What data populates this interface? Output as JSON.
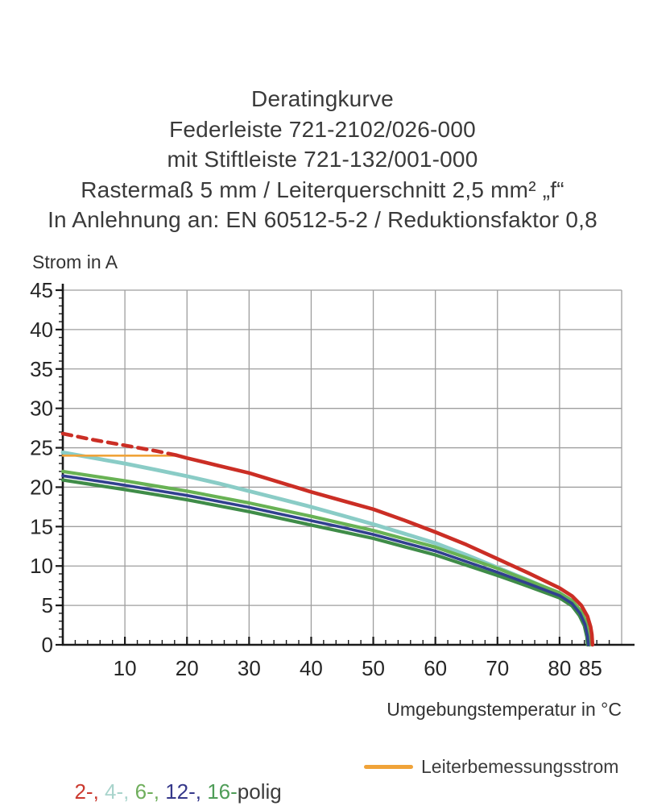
{
  "title": {
    "lines": [
      "Deratingkurve",
      "Federleiste 721-2102/026-000",
      "mit Stiftleiste 721-132/001-000",
      "Rastermaß 5 mm / Leiterquerschnitt 2,5 mm² „f“",
      "In Anlehnung an: EN 60512-5-2 / Reduktionsfaktor 0,8"
    ]
  },
  "chart_data": {
    "type": "line",
    "title": "Deratingkurve",
    "xlabel": "Umgebungstemperatur in °C",
    "ylabel": "Strom in A",
    "xlim": [
      0,
      90
    ],
    "ylim": [
      0,
      45
    ],
    "grid": true,
    "grid_color": "#9e9e9e",
    "axis_color": "#1a1a1a",
    "x_major_grid_step": 10,
    "y_major_grid_step": 5,
    "x_minor_tick_step": 2,
    "y_minor_tick_step": 1,
    "x_tick_labels": [
      10,
      20,
      30,
      40,
      50,
      60,
      70,
      80,
      85
    ],
    "y_tick_labels": [
      0,
      5,
      10,
      15,
      20,
      25,
      30,
      35,
      40,
      45
    ],
    "legend_position": "bottom",
    "series": [
      {
        "name": "4-polig",
        "color": "#8accc6",
        "width": 4.8,
        "dash": null,
        "points": [
          [
            0,
            24.4
          ],
          [
            5,
            23.7
          ],
          [
            10,
            23.0
          ],
          [
            15,
            22.2
          ],
          [
            20,
            21.4
          ],
          [
            25,
            20.5
          ],
          [
            30,
            19.5
          ],
          [
            35,
            18.5
          ],
          [
            40,
            17.5
          ],
          [
            45,
            16.4
          ],
          [
            50,
            15.3
          ],
          [
            55,
            14.1
          ],
          [
            60,
            12.9
          ],
          [
            65,
            11.4
          ],
          [
            70,
            9.8
          ],
          [
            75,
            8.2
          ],
          [
            80,
            6.5
          ],
          [
            82,
            5.4
          ],
          [
            83.5,
            4.0
          ],
          [
            84.3,
            2.6
          ],
          [
            84.7,
            1.2
          ],
          [
            84.85,
            0
          ]
        ]
      },
      {
        "name": "6-polig",
        "color": "#68b254",
        "width": 4.2,
        "dash": null,
        "points": [
          [
            0,
            22.0
          ],
          [
            5,
            21.4
          ],
          [
            10,
            20.8
          ],
          [
            15,
            20.15
          ],
          [
            20,
            19.5
          ],
          [
            25,
            18.75
          ],
          [
            30,
            18.0
          ],
          [
            35,
            17.15
          ],
          [
            40,
            16.3
          ],
          [
            45,
            15.4
          ],
          [
            50,
            14.5
          ],
          [
            55,
            13.45
          ],
          [
            60,
            12.4
          ],
          [
            65,
            11.05
          ],
          [
            70,
            9.7
          ],
          [
            75,
            8.15
          ],
          [
            80,
            6.6
          ],
          [
            82,
            5.6
          ],
          [
            83.5,
            4.2
          ],
          [
            84.3,
            2.8
          ],
          [
            84.65,
            1.2
          ],
          [
            84.8,
            0
          ]
        ]
      },
      {
        "name": "16-polig",
        "color": "#3f8c48",
        "width": 4.2,
        "dash": null,
        "points": [
          [
            0,
            20.9
          ],
          [
            5,
            20.3
          ],
          [
            10,
            19.7
          ],
          [
            15,
            19.05
          ],
          [
            20,
            18.4
          ],
          [
            25,
            17.65
          ],
          [
            30,
            16.9
          ],
          [
            35,
            16.05
          ],
          [
            40,
            15.2
          ],
          [
            45,
            14.35
          ],
          [
            50,
            13.5
          ],
          [
            55,
            12.45
          ],
          [
            60,
            11.4
          ],
          [
            65,
            10.1
          ],
          [
            70,
            8.8
          ],
          [
            75,
            7.4
          ],
          [
            80,
            5.95
          ],
          [
            82,
            4.95
          ],
          [
            83.2,
            3.7
          ],
          [
            84.0,
            2.4
          ],
          [
            84.4,
            1.0
          ],
          [
            84.5,
            0
          ]
        ]
      },
      {
        "name": "12-polig",
        "color": "#31408f",
        "width": 3.6,
        "dash": null,
        "points": [
          [
            0,
            21.45
          ],
          [
            5,
            20.85
          ],
          [
            10,
            20.25
          ],
          [
            15,
            19.6
          ],
          [
            20,
            18.95
          ],
          [
            25,
            18.2
          ],
          [
            30,
            17.45
          ],
          [
            35,
            16.6
          ],
          [
            40,
            15.75
          ],
          [
            45,
            14.9
          ],
          [
            50,
            14.0
          ],
          [
            55,
            12.95
          ],
          [
            60,
            11.9
          ],
          [
            65,
            10.55
          ],
          [
            70,
            9.2
          ],
          [
            75,
            7.75
          ],
          [
            80,
            6.25
          ],
          [
            82,
            5.25
          ],
          [
            83.3,
            4.0
          ],
          [
            84.1,
            2.6
          ],
          [
            84.5,
            1.1
          ],
          [
            84.65,
            0
          ]
        ]
      },
      {
        "name": "Leiterbemessungsstrom",
        "color": "#f0a339",
        "width": 2.6,
        "dash": null,
        "points": [
          [
            0,
            24.0
          ],
          [
            18.3,
            24.0
          ]
        ]
      },
      {
        "name": "2-polig-gestrichelt",
        "color": "#cb2e25",
        "width": 4.6,
        "dash": "11,8",
        "points": [
          [
            0,
            26.8
          ],
          [
            5,
            26.0
          ],
          [
            10,
            25.3
          ],
          [
            15,
            24.6
          ],
          [
            18.3,
            24.05
          ]
        ]
      },
      {
        "name": "2-polig",
        "color": "#cb2e25",
        "width": 4.6,
        "dash": null,
        "points": [
          [
            18.3,
            24.05
          ],
          [
            20,
            23.7
          ],
          [
            25,
            22.75
          ],
          [
            30,
            21.8
          ],
          [
            35,
            20.6
          ],
          [
            40,
            19.4
          ],
          [
            45,
            18.3
          ],
          [
            50,
            17.2
          ],
          [
            55,
            15.8
          ],
          [
            60,
            14.3
          ],
          [
            65,
            12.7
          ],
          [
            70,
            10.9
          ],
          [
            75,
            9.1
          ],
          [
            80,
            7.2
          ],
          [
            82,
            6.2
          ],
          [
            83.5,
            5.0
          ],
          [
            84.5,
            3.6
          ],
          [
            85,
            2.3
          ],
          [
            85.2,
            1.3
          ],
          [
            85.3,
            0
          ]
        ]
      }
    ]
  },
  "legend": {
    "left": {
      "items": [
        {
          "text": "2-, ",
          "color": "#cb3a30"
        },
        {
          "text": "4-, ",
          "color": "#a9d4cc"
        },
        {
          "text": "6-, ",
          "color": "#6fae5c"
        },
        {
          "text": "12-, ",
          "color": "#35388a"
        },
        {
          "text": "16-",
          "color": "#4f9d58"
        },
        {
          "text": "polig",
          "color": "#3c3c3c"
        }
      ]
    },
    "right": {
      "swatch_color": "#f0a339",
      "label": "Leiterbemessungsstrom"
    }
  }
}
